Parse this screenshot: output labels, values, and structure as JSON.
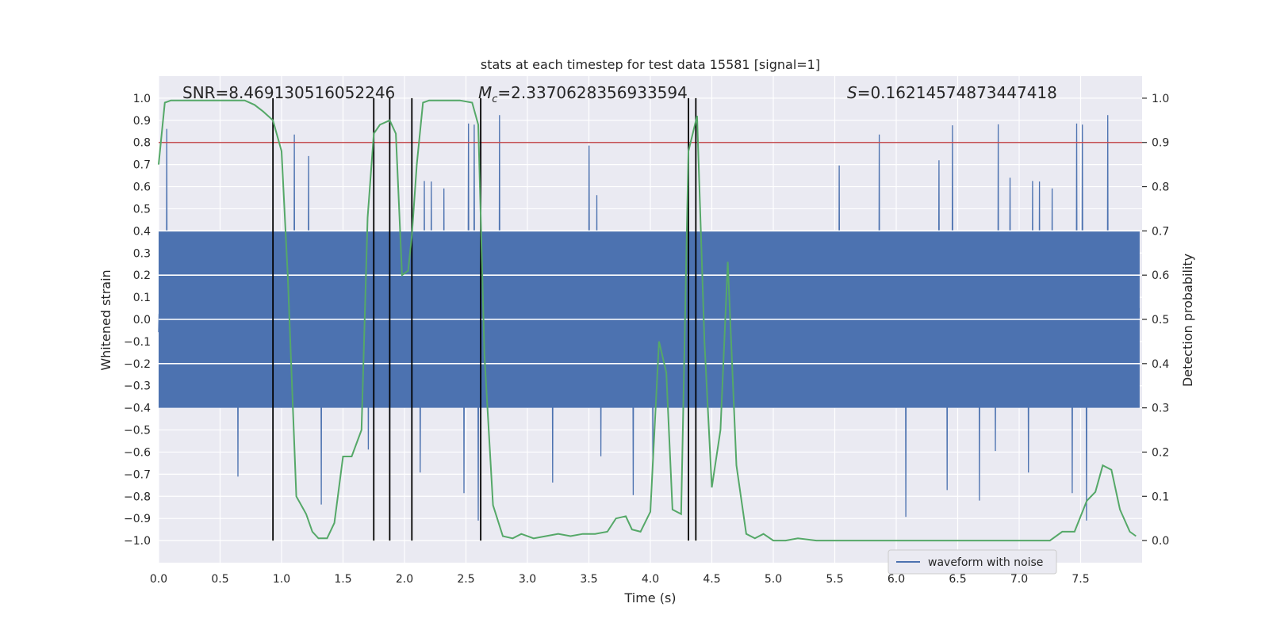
{
  "chart_data": {
    "type": "line",
    "title": "stats at each timestep for test data 15581 [signal=1]",
    "xlabel": "Time (s)",
    "ylabel": "Whitened strain",
    "ylabel_right": "Detection probability",
    "xlim": [
      0.0,
      8.0
    ],
    "ylim": [
      -1.1,
      1.1
    ],
    "ylim_right": [
      -0.05,
      1.05
    ],
    "x_ticks": [
      "0.0",
      "0.5",
      "1.0",
      "1.5",
      "2.0",
      "2.5",
      "3.0",
      "3.5",
      "4.0",
      "4.5",
      "5.0",
      "5.5",
      "6.0",
      "6.5",
      "7.0",
      "7.5"
    ],
    "y_ticks": [
      "1.0",
      "0.9",
      "0.8",
      "0.7",
      "0.6",
      "0.5",
      "0.4",
      "0.3",
      "0.2",
      "0.1",
      "0.0",
      "−0.1",
      "−0.2",
      "−0.3",
      "−0.4",
      "−0.5",
      "−0.6",
      "−0.7",
      "−0.8",
      "−0.9",
      "−1.0"
    ],
    "y_ticks_right": [
      "1.0",
      "0.9",
      "0.8",
      "0.7",
      "0.6",
      "0.5",
      "0.4",
      "0.3",
      "0.2",
      "0.1",
      "0.0"
    ],
    "grid": true,
    "legend": {
      "position": "lower-right",
      "entries": [
        "waveform with noise"
      ]
    },
    "annotations": {
      "snr": "SNR=8.469130516052246",
      "mc": "M_c=2.3370628356933594",
      "mc_main": "M",
      "mc_sub": "c",
      "mc_value": "=2.3370628356933594",
      "s_main": "S",
      "s_value": "=0.16214574873447418"
    },
    "threshold": 0.9,
    "vertical_lines": [
      0.93,
      1.75,
      1.88,
      2.06,
      2.62,
      4.31,
      4.37
    ],
    "series": [
      {
        "name": "waveform with noise",
        "kind": "noise-band",
        "color": "#4c72b0",
        "dense_range": [
          -0.4,
          0.4
        ],
        "spike_range": [
          -1.0,
          0.96
        ]
      },
      {
        "kind": "probability",
        "color": "#55a868",
        "x": [
          0.0,
          0.05,
          0.1,
          0.2,
          0.3,
          0.4,
          0.5,
          0.6,
          0.7,
          0.78,
          0.85,
          0.93,
          1.0,
          1.05,
          1.12,
          1.2,
          1.25,
          1.3,
          1.37,
          1.43,
          1.5,
          1.57,
          1.65,
          1.7,
          1.75,
          1.8,
          1.88,
          1.93,
          1.98,
          2.03,
          2.06,
          2.1,
          2.15,
          2.2,
          2.3,
          2.45,
          2.55,
          2.6,
          2.65,
          2.72,
          2.8,
          2.88,
          2.95,
          3.05,
          3.15,
          3.25,
          3.35,
          3.45,
          3.55,
          3.65,
          3.72,
          3.8,
          3.85,
          3.92,
          4.0,
          4.07,
          4.13,
          4.18,
          4.25,
          4.31,
          4.38,
          4.44,
          4.5,
          4.57,
          4.63,
          4.7,
          4.78,
          4.85,
          4.92,
          5.0,
          5.1,
          5.2,
          5.35,
          5.5,
          5.65,
          5.8,
          5.95,
          6.1,
          6.3,
          6.5,
          6.7,
          6.85,
          7.0,
          7.15,
          7.25,
          7.35,
          7.45,
          7.55,
          7.62,
          7.68,
          7.75,
          7.82,
          7.9,
          7.95
        ],
        "y": [
          0.85,
          0.99,
          0.995,
          0.995,
          0.995,
          0.995,
          0.995,
          0.995,
          0.995,
          0.985,
          0.97,
          0.95,
          0.88,
          0.6,
          0.1,
          0.06,
          0.02,
          0.005,
          0.005,
          0.04,
          0.19,
          0.19,
          0.25,
          0.73,
          0.92,
          0.94,
          0.95,
          0.92,
          0.6,
          0.61,
          0.69,
          0.85,
          0.99,
          0.995,
          0.995,
          0.995,
          0.99,
          0.94,
          0.42,
          0.08,
          0.01,
          0.005,
          0.015,
          0.005,
          0.01,
          0.015,
          0.01,
          0.015,
          0.015,
          0.02,
          0.05,
          0.055,
          0.025,
          0.02,
          0.065,
          0.45,
          0.38,
          0.07,
          0.06,
          0.88,
          0.96,
          0.45,
          0.12,
          0.25,
          0.63,
          0.17,
          0.015,
          0.005,
          0.015,
          0.0,
          0.0,
          0.005,
          0.0,
          0.0,
          0.0,
          0.0,
          0.0,
          0.0,
          0.0,
          0.0,
          0.0,
          0.0,
          0.0,
          0.0,
          0.0,
          0.02,
          0.02,
          0.09,
          0.11,
          0.17,
          0.16,
          0.07,
          0.02,
          0.01
        ]
      },
      {
        "kind": "threshold",
        "color": "#c44e52",
        "value": 0.9
      }
    ]
  }
}
